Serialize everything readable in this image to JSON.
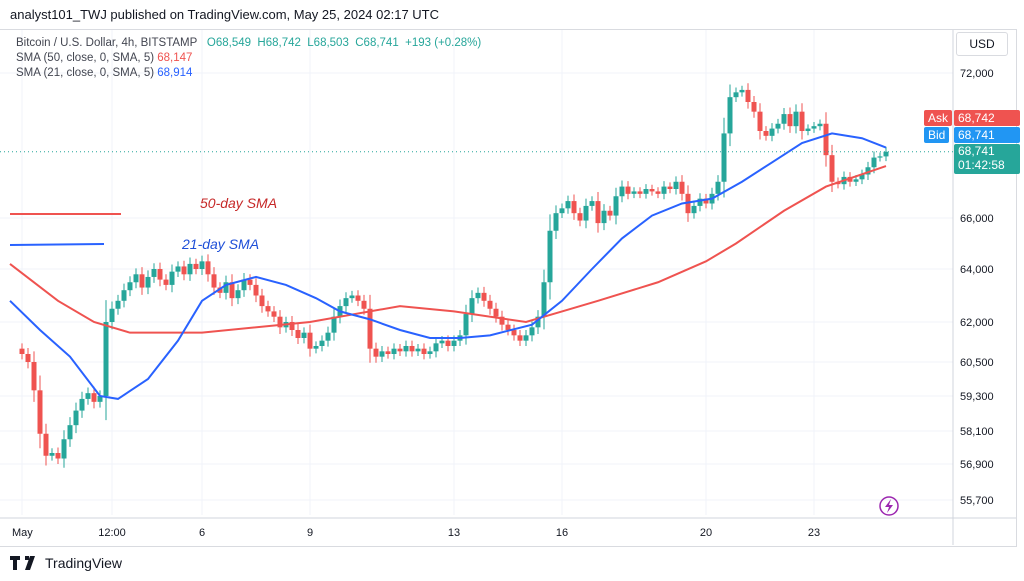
{
  "header": {
    "published": "analyst101_TWJ published on TradingView.com, May 25, 2024 02:17 UTC"
  },
  "legend": {
    "symbol": "Bitcoin / U.S. Dollar, 4h, BITSTAMP",
    "open": "O68,549",
    "high": "H68,742",
    "low": "L68,503",
    "close": "C68,741",
    "change": "+193 (+0.28%)",
    "sma50_label": "SMA (50, close, 0, SMA, 5)",
    "sma50_value": "68,147",
    "sma21_label": "SMA (21, close, 0, SMA, 5)",
    "sma21_value": "68,914"
  },
  "currency": "USD",
  "price_tags": {
    "ask_label": "Ask",
    "ask": "68,742",
    "bid_label": "Bid",
    "bid": "68,741",
    "last": "68,741",
    "countdown": "01:42:58"
  },
  "annotations": {
    "sma50": "50-day SMA",
    "sma21": "21-day SMA"
  },
  "footer": {
    "brand": "TradingView"
  },
  "colors": {
    "up": "#26a69a",
    "down": "#ef5350",
    "sma50": "#ef5350",
    "sma21": "#2962ff",
    "ask": "#ef5350",
    "bid": "#2196f3",
    "last": "#26a69a"
  },
  "chart_data": {
    "type": "candlestick",
    "interval": "4h",
    "start": "2024-05-01T00:00",
    "y_tick_labels": [
      "72,000",
      "66,000",
      "64,000",
      "62,000",
      "60,500",
      "59,300",
      "58,100",
      "56,900",
      "55,700"
    ],
    "y_ticks": [
      72000,
      66000,
      64000,
      62000,
      60500,
      59300,
      58100,
      56900,
      55700
    ],
    "x_tick_labels": [
      "May",
      "12:00",
      "6",
      "9",
      "13",
      "16",
      "20",
      "23"
    ],
    "x_ticks": [
      "2024-05-01T00:00",
      "2024-05-03T12:00",
      "2024-05-06T00:00",
      "2024-05-09T00:00",
      "2024-05-13T00:00",
      "2024-05-16T00:00",
      "2024-05-20T00:00",
      "2024-05-23T00:00"
    ],
    "closes": [
      60800,
      60500,
      59500,
      58000,
      57200,
      57300,
      57100,
      57800,
      58300,
      58800,
      59200,
      59400,
      59100,
      59300,
      62000,
      62500,
      62800,
      63200,
      63500,
      63800,
      63300,
      63700,
      64000,
      63600,
      63400,
      63900,
      64100,
      63800,
      64200,
      64000,
      64300,
      63800,
      63300,
      63100,
      63500,
      62900,
      63200,
      63600,
      63400,
      63000,
      62600,
      62400,
      62200,
      61800,
      62000,
      61700,
      61400,
      61600,
      61000,
      61100,
      61300,
      61600,
      62200,
      62600,
      62900,
      63000,
      62800,
      62500,
      61000,
      60700,
      60900,
      60800,
      61000,
      60900,
      61100,
      60900,
      61000,
      60800,
      60900,
      61200,
      61300,
      61100,
      61300,
      61500,
      62300,
      62900,
      63100,
      62800,
      62500,
      62200,
      61900,
      61700,
      61500,
      61300,
      61500,
      61800,
      62200,
      63500,
      65500,
      66200,
      66400,
      66700,
      66200,
      65900,
      66500,
      66700,
      65800,
      66300,
      66100,
      66900,
      67300,
      67000,
      67100,
      67000,
      67200,
      67100,
      67000,
      67300,
      67200,
      67500,
      67000,
      66200,
      66500,
      66800,
      66600,
      67000,
      67500,
      69500,
      71000,
      71200,
      71300,
      70800,
      70400,
      69600,
      69400,
      69700,
      69900,
      70300,
      69800,
      70400,
      69600,
      69700,
      69800,
      69900,
      68600,
      67500,
      67400,
      67700,
      67500,
      67600,
      67800,
      68100,
      68500,
      68549,
      68741
    ],
    "first_open": 61000,
    "sma50": [
      [
        "2024-04-30T16:00",
        64200
      ],
      [
        "2024-05-02T00:00",
        62800
      ],
      [
        "2024-05-03T00:00",
        62000
      ],
      [
        "2024-05-04T00:00",
        61600
      ],
      [
        "2024-05-06T00:00",
        61600
      ],
      [
        "2024-05-09T00:00",
        62000
      ],
      [
        "2024-05-11T12:00",
        62600
      ],
      [
        "2024-05-13T00:00",
        62400
      ],
      [
        "2024-05-15T00:00",
        62000
      ],
      [
        "2024-05-16T00:00",
        62400
      ],
      [
        "2024-05-17T00:00",
        62800
      ],
      [
        "2024-05-18T16:00",
        63500
      ],
      [
        "2024-05-20T00:00",
        64300
      ],
      [
        "2024-05-20T20:00",
        65000
      ],
      [
        "2024-05-22T04:00",
        66300
      ],
      [
        "2024-05-23T08:00",
        67300
      ],
      [
        "2024-05-25T00:00",
        68147
      ]
    ],
    "sma21": [
      [
        "2024-04-30T16:00",
        62800
      ],
      [
        "2024-05-01T12:00",
        61700
      ],
      [
        "2024-05-02T08:00",
        60700
      ],
      [
        "2024-05-03T04:00",
        59300
      ],
      [
        "2024-05-03T16:00",
        59200
      ],
      [
        "2024-05-04T12:00",
        59900
      ],
      [
        "2024-05-05T08:00",
        61300
      ],
      [
        "2024-05-06T00:00",
        62800
      ],
      [
        "2024-05-06T16:00",
        63400
      ],
      [
        "2024-05-07T12:00",
        63700
      ],
      [
        "2024-05-08T08:00",
        63400
      ],
      [
        "2024-05-09T04:00",
        62900
      ],
      [
        "2024-05-09T20:00",
        62400
      ],
      [
        "2024-05-10T16:00",
        62100
      ],
      [
        "2024-05-11T12:00",
        61700
      ],
      [
        "2024-05-12T08:00",
        61400
      ],
      [
        "2024-05-13T04:00",
        61400
      ],
      [
        "2024-05-14T00:00",
        61500
      ],
      [
        "2024-05-15T04:00",
        61900
      ],
      [
        "2024-05-16T00:00",
        62800
      ],
      [
        "2024-05-16T20:00",
        64000
      ],
      [
        "2024-05-17T16:00",
        65200
      ],
      [
        "2024-05-18T12:00",
        66100
      ],
      [
        "2024-05-19T08:00",
        66600
      ],
      [
        "2024-05-20T04:00",
        66800
      ],
      [
        "2024-05-21T00:00",
        67500
      ],
      [
        "2024-05-21T20:00",
        68300
      ],
      [
        "2024-05-22T16:00",
        69100
      ],
      [
        "2024-05-23T12:00",
        69500
      ],
      [
        "2024-05-24T08:00",
        69300
      ],
      [
        "2024-05-25T00:00",
        68914
      ]
    ]
  }
}
